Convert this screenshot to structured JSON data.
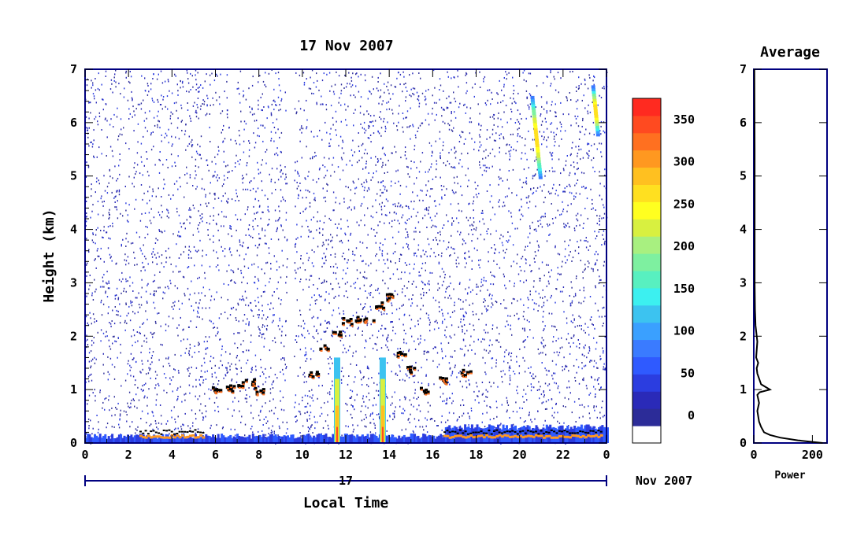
{
  "chart_data": [
    {
      "type": "heatmap",
      "title": "17 Nov 2007",
      "xlabel": "Local Time",
      "ylabel": "Height (km)",
      "x_ticks": [
        "0",
        "2",
        "4",
        "6",
        "8",
        "10",
        "12",
        "14",
        "16",
        "18",
        "20",
        "22",
        "0"
      ],
      "y_ticks": [
        "0",
        "1",
        "2",
        "3",
        "4",
        "5",
        "6",
        "7"
      ],
      "xlim": [
        0,
        24
      ],
      "ylim": [
        0,
        7
      ],
      "date_axis": {
        "day_label": "17",
        "month_label": "Nov 2007"
      },
      "colorbar": {
        "ticks": [
          "0",
          "50",
          "100",
          "150",
          "200",
          "250",
          "300",
          "350"
        ],
        "range": [
          0,
          380
        ],
        "colors": [
          "#ffffff",
          "#2c2c98",
          "#2a2ab8",
          "#2b3de0",
          "#2f5aff",
          "#3a7bff",
          "#3aa0ff",
          "#3cc3f0",
          "#3cf0f0",
          "#58f0c0",
          "#7ef0a0",
          "#a8f080",
          "#d8f040",
          "#ffff20",
          "#ffe020",
          "#ffc020",
          "#ff9820",
          "#ff7020",
          "#ff4a20",
          "#ff2a20"
        ]
      },
      "features": {
        "boundary_layer_top_km": [
          [
            6.0,
            1.0
          ],
          [
            6.5,
            1.05
          ],
          [
            7.0,
            1.1
          ],
          [
            7.5,
            1.15
          ],
          [
            8.0,
            1.0
          ],
          [
            10.5,
            1.3
          ],
          [
            11.0,
            1.8
          ],
          [
            11.5,
            2.1
          ],
          [
            12.0,
            2.3
          ],
          [
            12.5,
            2.35
          ],
          [
            13.0,
            2.3
          ],
          [
            13.5,
            2.6
          ],
          [
            14.0,
            2.75
          ],
          [
            14.5,
            1.7
          ],
          [
            15.0,
            1.4
          ],
          [
            15.5,
            1.0
          ],
          [
            16.5,
            1.2
          ],
          [
            17.5,
            1.35
          ]
        ],
        "surface_layer_hours": [
          [
            2.5,
            5.5
          ],
          [
            16.5,
            23.8
          ]
        ],
        "rain_streaks_hours": [
          11.6,
          13.7
        ],
        "high_cloud_streaks": [
          {
            "hour": 20.5,
            "from_km": 5.0,
            "to_km": 6.5
          },
          {
            "hour": 23.3,
            "from_km": 5.8,
            "to_km": 6.7
          }
        ]
      }
    },
    {
      "type": "line",
      "title": "Average",
      "xlabel": "Power",
      "x_ticks": [
        "0",
        "200"
      ],
      "y_ticks": [
        "0",
        "1",
        "2",
        "3",
        "4",
        "5",
        "6",
        "7"
      ],
      "xlim": [
        0,
        250
      ],
      "ylim": [
        0,
        7
      ],
      "series": [
        {
          "x": [
            235,
            150,
            90,
            55,
            35,
            25,
            18,
            12,
            18,
            12,
            20,
            55,
            25,
            12,
            10,
            15,
            8,
            12,
            6,
            4,
            3,
            3,
            3,
            2
          ],
          "y": [
            0.0,
            0.05,
            0.1,
            0.15,
            0.2,
            0.3,
            0.4,
            0.6,
            0.75,
            0.9,
            0.95,
            1.0,
            1.1,
            1.3,
            1.4,
            1.5,
            1.6,
            1.9,
            2.2,
            2.5,
            3.0,
            4.0,
            5.5,
            7.0
          ]
        }
      ]
    }
  ]
}
